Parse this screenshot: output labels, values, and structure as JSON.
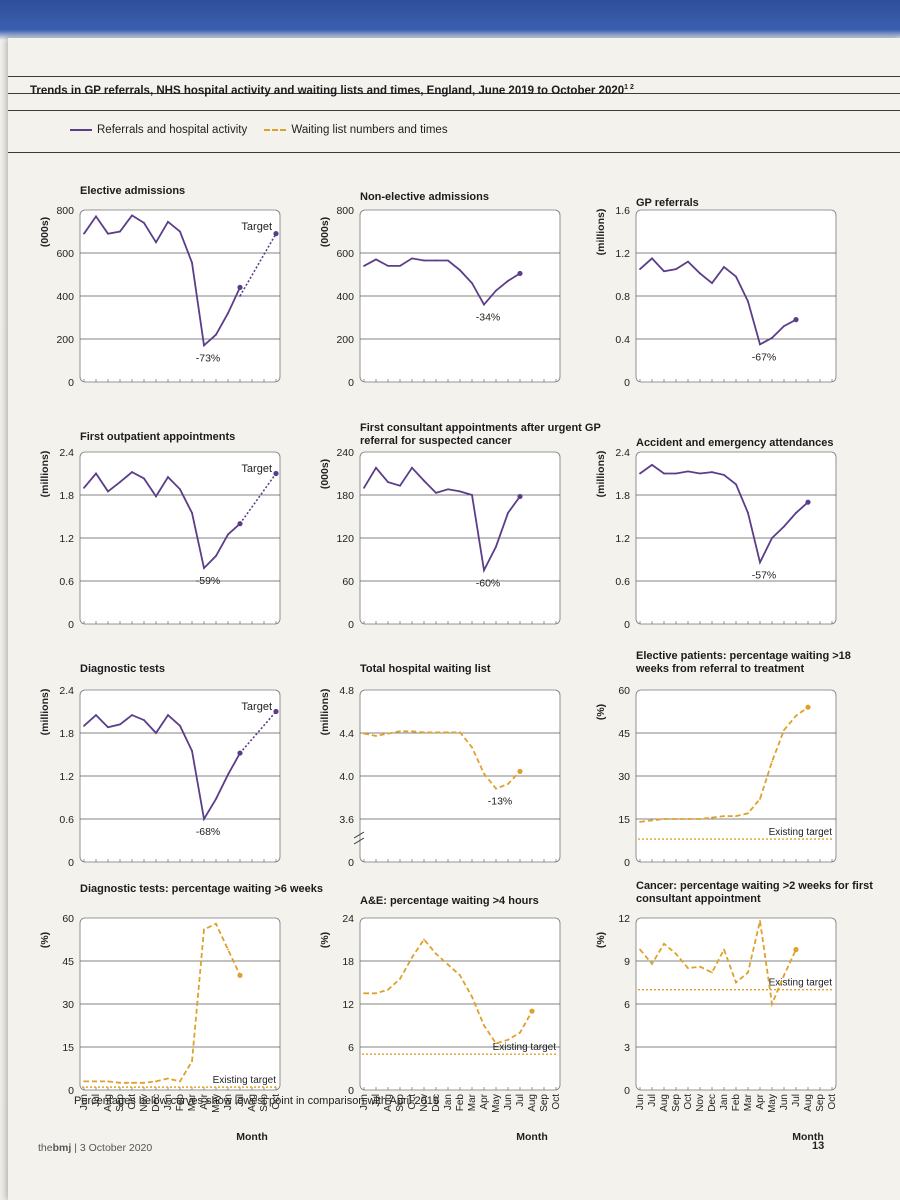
{
  "title": "Trends in GP referrals, NHS hospital activity and waiting lists and times, England, June 2019 to October 2020",
  "title_superscript": "1 2",
  "legend": {
    "solid": "Referrals and hospital activity",
    "dashed": "Waiting list numbers and times"
  },
  "footnote": "Percentages below curves show lowest point in comparison with April 2019",
  "journal": {
    "brand_pre": "the",
    "brand": "bmj",
    "issue": "| 3 October 2020"
  },
  "page_number": "13",
  "colors": {
    "solid": "#5b3d8a",
    "dashed": "#e0a12b",
    "grid": "#5a5a5a",
    "plot_bg": "#ffffff"
  },
  "month_labels": [
    "Jun",
    "Jul",
    "Aug",
    "Sep",
    "Oct",
    "Nov",
    "Dec",
    "Jan",
    "Feb",
    "Mar",
    "Apr",
    "May",
    "Jun",
    "Jul",
    "Aug",
    "Sep",
    "Oct"
  ],
  "month_axis_title": "Month",
  "chart_data": [
    {
      "type": "line",
      "title": "Elective admissions",
      "ylabel": "(000s)",
      "ylim": [
        0,
        800
      ],
      "yticks": [
        "0",
        "200",
        "400",
        "600",
        "800"
      ],
      "series": [
        {
          "style": "solid",
          "values": [
            690,
            770,
            690,
            700,
            775,
            740,
            650,
            745,
            700,
            555,
            170,
            220,
            320,
            440
          ]
        },
        {
          "style": "dashed-projection",
          "values": [
            null,
            null,
            null,
            null,
            null,
            null,
            null,
            null,
            null,
            null,
            null,
            null,
            null,
            400,
            null,
            null,
            690
          ]
        }
      ],
      "annotations": [
        {
          "text": "-73%",
          "at": 10
        },
        {
          "text": "Target",
          "at": 16
        }
      ]
    },
    {
      "type": "line",
      "title": "Non-elective admissions",
      "ylabel": "(000s)",
      "ylim": [
        0,
        800
      ],
      "yticks": [
        "0",
        "200",
        "400",
        "600",
        "800"
      ],
      "series": [
        {
          "style": "solid",
          "values": [
            540,
            570,
            540,
            540,
            575,
            565,
            565,
            565,
            520,
            460,
            360,
            425,
            470,
            505
          ]
        }
      ],
      "annotations": [
        {
          "text": "-34%",
          "at": 10
        }
      ]
    },
    {
      "type": "line",
      "title": "GP referrals",
      "ylabel": "(millions)",
      "ylim": [
        0,
        1.6
      ],
      "yticks": [
        "0",
        "0.4",
        "0.8",
        "1.2",
        "1.6"
      ],
      "series": [
        {
          "style": "solid",
          "values": [
            1.05,
            1.15,
            1.03,
            1.05,
            1.12,
            1.01,
            0.92,
            1.07,
            0.98,
            0.75,
            0.35,
            0.41,
            0.52,
            0.58
          ]
        }
      ],
      "annotations": [
        {
          "text": "-67%",
          "at": 10
        }
      ]
    },
    {
      "type": "line",
      "title": "First outpatient appointments",
      "ylabel": "(millions)",
      "ylim": [
        0,
        2.4
      ],
      "yticks": [
        "0",
        "0.6",
        "1.2",
        "1.8",
        "2.4"
      ],
      "series": [
        {
          "style": "solid",
          "values": [
            1.9,
            2.1,
            1.85,
            1.98,
            2.12,
            2.03,
            1.78,
            2.05,
            1.88,
            1.55,
            0.78,
            0.95,
            1.25,
            1.4
          ]
        },
        {
          "style": "dashed-projection",
          "values": [
            null,
            null,
            null,
            null,
            null,
            null,
            null,
            null,
            null,
            null,
            null,
            null,
            null,
            1.4,
            null,
            null,
            2.1
          ]
        }
      ],
      "annotations": [
        {
          "text": "-59%",
          "at": 10
        },
        {
          "text": "Target",
          "at": 16
        }
      ]
    },
    {
      "type": "line",
      "title": "First consultant appointments after urgent GP referral for suspected cancer",
      "ylabel": "(000s)",
      "ylim": [
        0,
        240
      ],
      "yticks": [
        "0",
        "60",
        "120",
        "180",
        "240"
      ],
      "series": [
        {
          "style": "solid",
          "values": [
            190,
            218,
            198,
            193,
            218,
            200,
            183,
            188,
            185,
            180,
            75,
            108,
            155,
            178
          ]
        }
      ],
      "annotations": [
        {
          "text": "-60%",
          "at": 10
        }
      ]
    },
    {
      "type": "line",
      "title": "Accident and emergency attendances",
      "ylabel": "(millions)",
      "ylim": [
        0,
        2.4
      ],
      "yticks": [
        "0",
        "0.6",
        "1.2",
        "1.8",
        "2.4"
      ],
      "series": [
        {
          "style": "solid",
          "values": [
            2.1,
            2.22,
            2.1,
            2.1,
            2.13,
            2.1,
            2.12,
            2.08,
            1.95,
            1.55,
            0.86,
            1.2,
            1.36,
            1.55,
            1.7
          ]
        }
      ],
      "annotations": [
        {
          "text": "-57%",
          "at": 10
        }
      ]
    },
    {
      "type": "line",
      "title": "Diagnostic tests",
      "ylabel": "(millions)",
      "ylim": [
        0,
        2.4
      ],
      "yticks": [
        "0",
        "0.6",
        "1.2",
        "1.8",
        "2.4"
      ],
      "series": [
        {
          "style": "solid",
          "values": [
            1.9,
            2.05,
            1.88,
            1.92,
            2.05,
            1.98,
            1.8,
            2.05,
            1.9,
            1.55,
            0.6,
            0.88,
            1.22,
            1.52
          ]
        },
        {
          "style": "dashed-projection",
          "values": [
            null,
            null,
            null,
            null,
            null,
            null,
            null,
            null,
            null,
            null,
            null,
            null,
            null,
            1.52,
            null,
            null,
            2.1
          ]
        }
      ],
      "annotations": [
        {
          "text": "-68%",
          "at": 10
        },
        {
          "text": "Target",
          "at": 16
        }
      ]
    },
    {
      "type": "line",
      "title": "Total hospital waiting list",
      "ylabel": "(millions)",
      "ylim": [
        3.6,
        4.8
      ],
      "axis_break": true,
      "yticks": [
        "0",
        "3.6",
        "4.0",
        "4.4",
        "4.8"
      ],
      "series": [
        {
          "style": "dashed",
          "values": [
            4.42,
            4.4,
            4.42,
            4.44,
            4.44,
            4.43,
            4.43,
            4.43,
            4.43,
            4.3,
            4.07,
            3.94,
            3.98,
            4.09
          ]
        }
      ],
      "annotations": [
        {
          "text": "-13%",
          "at": 11
        }
      ]
    },
    {
      "type": "line",
      "title": "Elective patients: percentage waiting >18 weeks from referral to treatment",
      "ylabel": "(%)",
      "ylim": [
        0,
        60
      ],
      "yticks": [
        "0",
        "15",
        "30",
        "45",
        "60"
      ],
      "series": [
        {
          "style": "dashed",
          "values": [
            14,
            14.5,
            15,
            15,
            15,
            15,
            15.5,
            16,
            16,
            17,
            22,
            35,
            46,
            51,
            54
          ]
        }
      ],
      "target": 8,
      "target_label": "Existing target"
    },
    {
      "type": "line",
      "title": "Diagnostic tests: percentage waiting >6 weeks",
      "ylabel": "(%)",
      "ylim": [
        0,
        60
      ],
      "yticks": [
        "0",
        "15",
        "30",
        "45",
        "60"
      ],
      "series": [
        {
          "style": "dashed",
          "values": [
            3,
            3,
            3,
            2.5,
            2.5,
            2.5,
            3,
            4,
            3,
            10,
            56,
            58,
            49,
            40
          ]
        }
      ],
      "target": 1,
      "target_label": "Existing target",
      "xlabel": "Month"
    },
    {
      "type": "line",
      "title": "A&E: percentage waiting >4 hours",
      "ylabel": "(%)",
      "ylim": [
        0,
        24
      ],
      "yticks": [
        "0",
        "6",
        "12",
        "18",
        "24"
      ],
      "series": [
        {
          "style": "dashed",
          "values": [
            13.5,
            13.5,
            14,
            15.5,
            18.5,
            21,
            19,
            17.5,
            16,
            13,
            9,
            6.5,
            7,
            8,
            11
          ]
        }
      ],
      "target": 5,
      "target_label": "Existing target",
      "xlabel": "Month"
    },
    {
      "type": "line",
      "title": "Cancer: percentage waiting >2 weeks for first consultant appointment",
      "ylabel": "(%)",
      "ylim": [
        0,
        12
      ],
      "yticks": [
        "0",
        "3",
        "6",
        "9",
        "12"
      ],
      "series": [
        {
          "style": "dashed",
          "values": [
            9.8,
            8.8,
            10.2,
            9.5,
            8.5,
            8.6,
            8.2,
            9.8,
            7.5,
            8.2,
            11.8,
            6,
            8,
            9.8
          ]
        }
      ],
      "target": 7,
      "target_label": "Existing target",
      "xlabel": "Month"
    }
  ]
}
